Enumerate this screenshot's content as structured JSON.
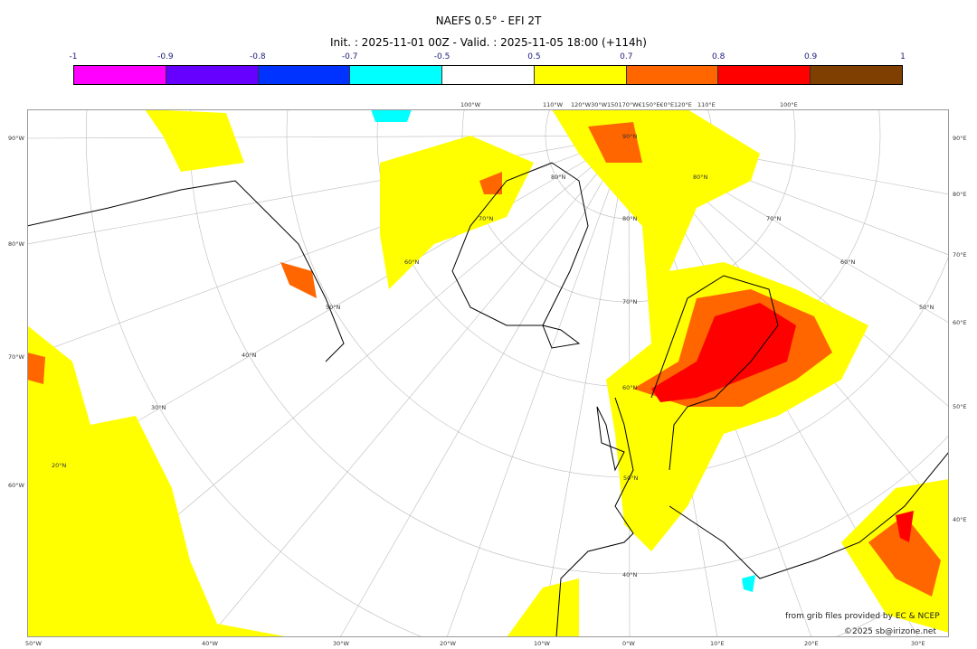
{
  "title": "NAEFS 0.5° - EFI 2T",
  "subtitle": "Init. : 2025-11-01 00Z - Valid. : 2025-11-05 18:00 (+114h)",
  "colorbar": {
    "ticks": [
      "-1",
      "-0.9",
      "-0.8",
      "-0.7",
      "-0.5",
      "0.5",
      "0.7",
      "0.8",
      "0.9",
      "1"
    ],
    "colors": [
      "#ff00ff",
      "#6600ff",
      "#0033ff",
      "#00ffff",
      "#ffffff",
      "#ffff00",
      "#ff6600",
      "#ff0000",
      "#7f3f00"
    ]
  },
  "axes": {
    "left": [
      "90°W",
      "80°W",
      "70°W",
      "60°W"
    ],
    "right": [
      "90°E",
      "80°E",
      "70°E",
      "60°E",
      "50°E",
      "40°E"
    ],
    "bottom": [
      "50°W",
      "40°W",
      "30°W",
      "20°W",
      "10°W",
      "0°W",
      "10°E",
      "20°E",
      "30°E"
    ],
    "top": [
      "100°W",
      "110°W",
      "120°W30°W150170°W€150°E€0°E120°E",
      "110°E",
      "100°E"
    ],
    "latitudes": [
      "90°N",
      "80°N",
      "70°N",
      "60°N",
      "50°N",
      "40°N",
      "80°N",
      "70°N",
      "60°N",
      "50°N",
      "80°N",
      "70°N",
      "60°N",
      "50°N",
      "40°N",
      "30°N",
      "20°N"
    ]
  },
  "credits": {
    "source": "from grib files provided by EC & NCEP",
    "copyright": "©2025 sb@irizone.net"
  }
}
